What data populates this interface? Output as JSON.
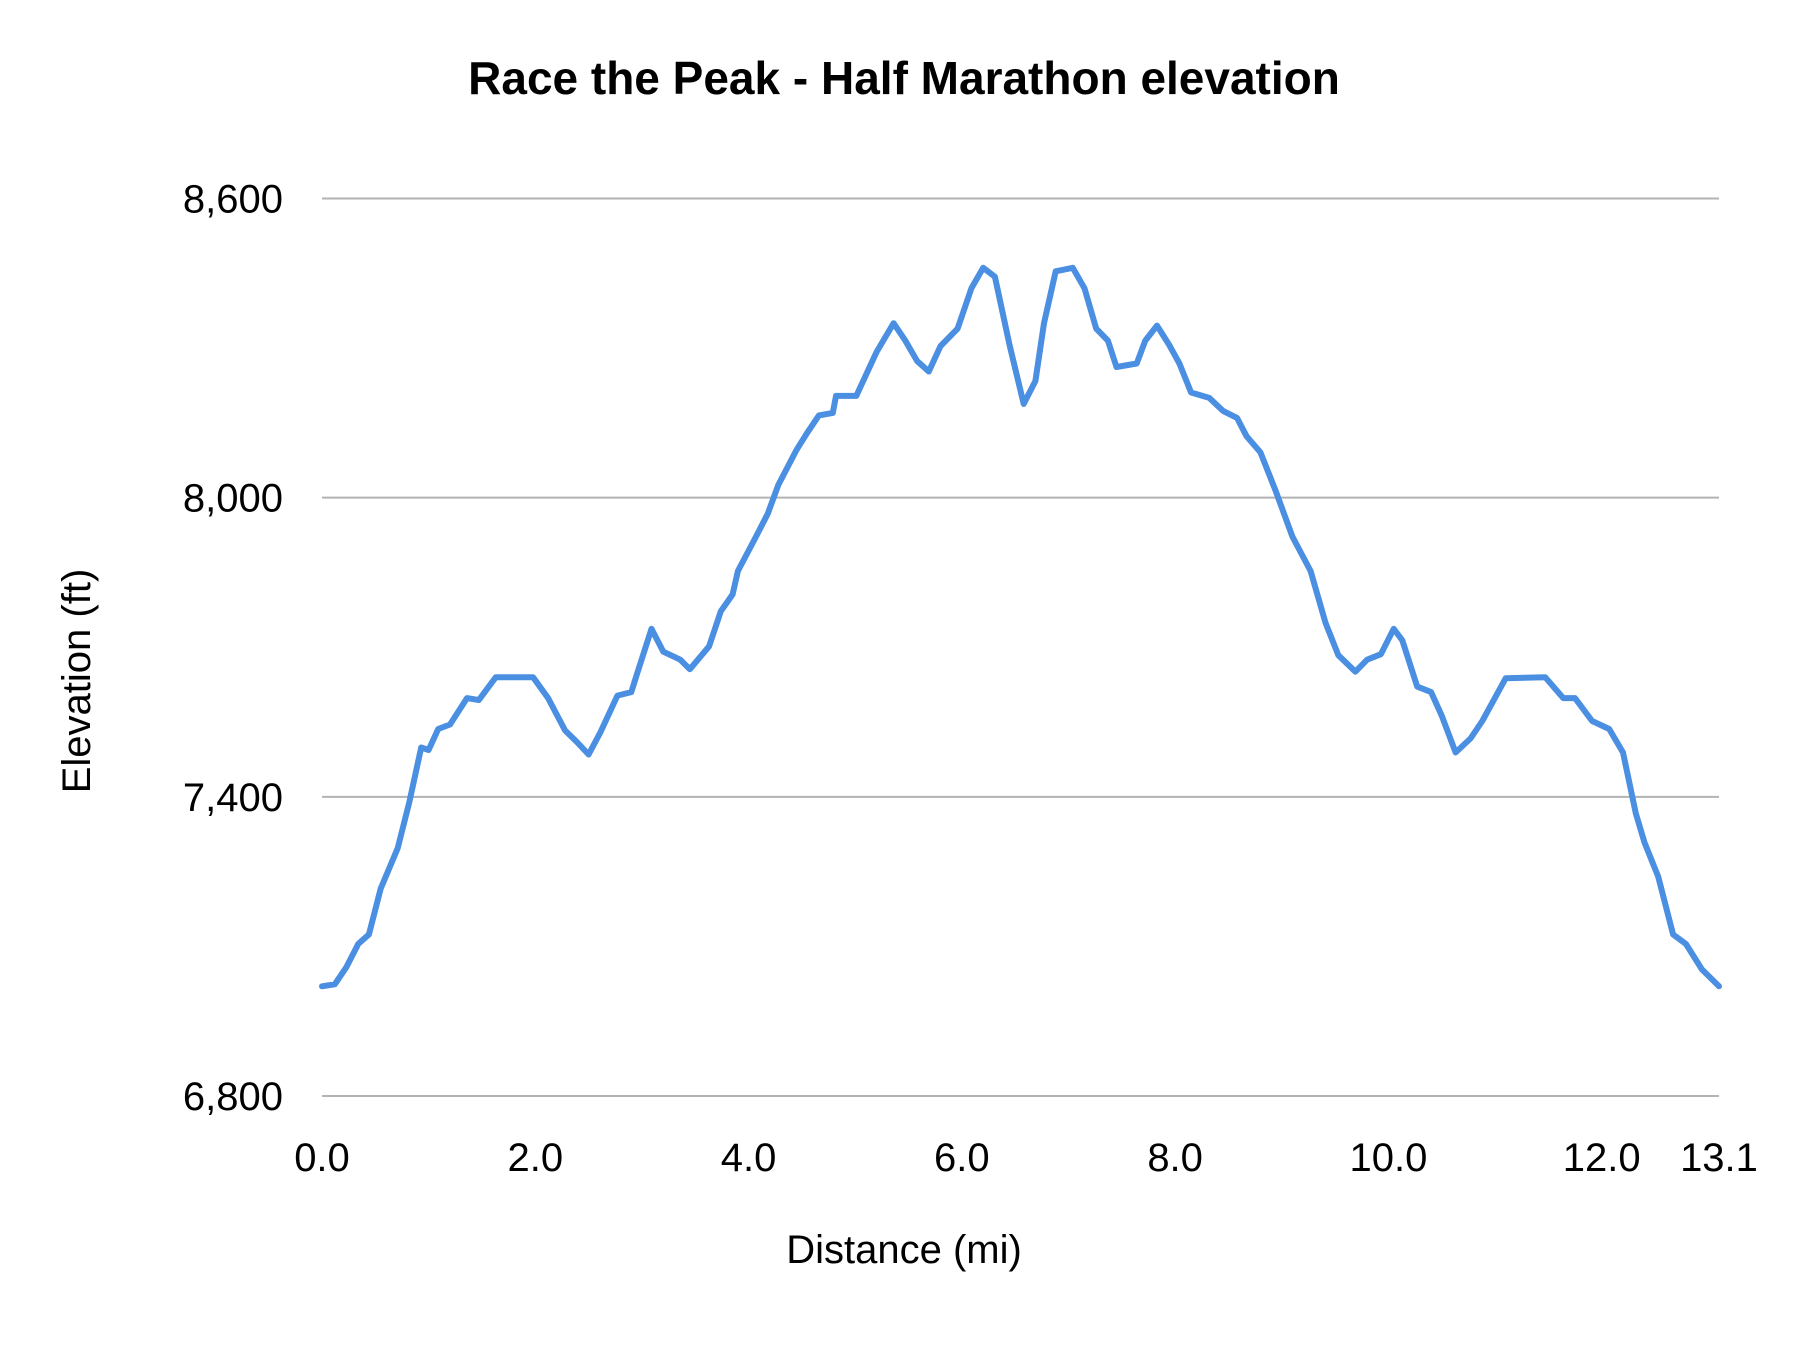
{
  "chart_data": {
    "type": "line",
    "title": "Race the Peak - Half Marathon elevation",
    "xlabel": "Distance (mi)",
    "ylabel": "Elevation (ft)",
    "xlim": [
      0,
      13.1
    ],
    "ylim": [
      6800,
      8600
    ],
    "x_ticks": [
      "0.0",
      "2.0",
      "4.0",
      "6.0",
      "8.0",
      "10.0",
      "12.0",
      "13.1"
    ],
    "x_tick_values": [
      0,
      2,
      4,
      6,
      8,
      10,
      12,
      13.1
    ],
    "y_ticks": [
      "6,800",
      "7,400",
      "8,000",
      "8,600"
    ],
    "y_tick_values": [
      6800,
      7400,
      8000,
      8600
    ],
    "grid": "horizontal",
    "legend": "none",
    "colors": {
      "line": "#4a8fe2",
      "grid": "#b3b3b3"
    },
    "series": [
      {
        "x": [
          0.0,
          0.12,
          0.23,
          0.34,
          0.44,
          0.55,
          0.71,
          0.82,
          0.93,
          1.0,
          1.09,
          1.2,
          1.36,
          1.47,
          1.63,
          1.98,
          2.12,
          2.28,
          2.39,
          2.5,
          2.61,
          2.77,
          2.9,
          2.95,
          3.09,
          3.2,
          3.36,
          3.45,
          3.63,
          3.74,
          3.85,
          3.9,
          4.07,
          4.18,
          4.28,
          4.45,
          4.55,
          4.66,
          4.79,
          4.82,
          5.01,
          5.2,
          5.36,
          5.47,
          5.58,
          5.69,
          5.8,
          5.96,
          6.09,
          6.2,
          6.31,
          6.45,
          6.58,
          6.69,
          6.77,
          6.88,
          7.04,
          7.15,
          7.26,
          7.37,
          7.45,
          7.64,
          7.72,
          7.83,
          7.94,
          8.04,
          8.15,
          8.32,
          8.45,
          8.58,
          8.67,
          8.8,
          8.94,
          9.1,
          9.27,
          9.41,
          9.53,
          9.69,
          9.8,
          9.93,
          10.05,
          10.13,
          10.27,
          10.4,
          10.5,
          10.63,
          10.77,
          10.88,
          11.1,
          11.47,
          11.64,
          11.75,
          11.91,
          12.07,
          12.2,
          12.32,
          12.4,
          12.53,
          12.67,
          12.79,
          12.94,
          13.1
        ],
        "y": [
          7020,
          7024,
          7059,
          7105,
          7124,
          7216,
          7297,
          7390,
          7499,
          7494,
          7536,
          7545,
          7598,
          7594,
          7640,
          7640,
          7598,
          7533,
          7510,
          7485,
          7529,
          7603,
          7610,
          7644,
          7737,
          7691,
          7675,
          7656,
          7702,
          7772,
          7806,
          7853,
          7922,
          7968,
          8026,
          8096,
          8130,
          8165,
          8170,
          8204,
          8204,
          8292,
          8350,
          8315,
          8274,
          8253,
          8304,
          8339,
          8420,
          8461,
          8443,
          8304,
          8188,
          8234,
          8350,
          8454,
          8461,
          8420,
          8339,
          8315,
          8262,
          8269,
          8315,
          8345,
          8308,
          8269,
          8211,
          8200,
          8174,
          8160,
          8123,
          8091,
          8015,
          7922,
          7853,
          7749,
          7684,
          7651,
          7675,
          7686,
          7737,
          7714,
          7621,
          7610,
          7563,
          7489,
          7517,
          7552,
          7638,
          7640,
          7598,
          7598,
          7552,
          7536,
          7489,
          7367,
          7309,
          7240,
          7124,
          7105,
          7054,
          7020
        ]
      }
    ]
  }
}
